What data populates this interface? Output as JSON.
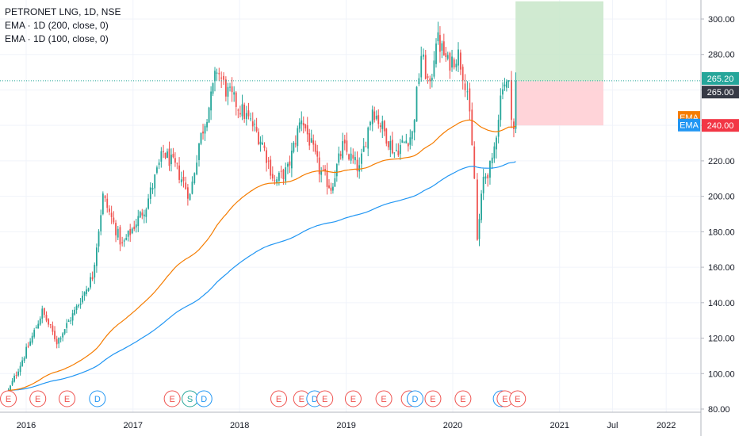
{
  "chart_data": {
    "type": "candlestick",
    "title": "PETRONET LNG, 1D, NSE",
    "indicators": [
      {
        "label": "EMA · 1D (200, close, 0)",
        "name": "EMA",
        "color": "#2196f3",
        "length": 200
      },
      {
        "label": "EMA · 1D (100, close, 0)",
        "name": "EMA",
        "color": "#f57c00",
        "length": 100
      }
    ],
    "ylim": [
      80,
      310
    ],
    "y_ticks": [
      "300.00",
      "280.00",
      "260.00",
      "240.00",
      "220.00",
      "200.00",
      "180.00",
      "160.00",
      "140.00",
      "120.00",
      "100.00",
      "80.00"
    ],
    "x_ticks": [
      "2016",
      "2017",
      "2018",
      "2019",
      "2020",
      "2021",
      "Jul",
      "2022"
    ],
    "last_price": {
      "label": "265.20",
      "value": 265.2,
      "color": "#26a69a"
    },
    "target_price": {
      "label": "265.00",
      "value": 265.0,
      "color": "#363a45"
    },
    "stop_price": {
      "label": "240.00",
      "value": 240.0,
      "color": "#f23645"
    },
    "ema_badges": [
      {
        "label": "EMA",
        "value": 244.5,
        "color": "#f57c00"
      },
      {
        "label": "EMA",
        "value": 240.2,
        "color": "#2196f3"
      }
    ],
    "position": {
      "entry": 265.0,
      "target": 310.0,
      "stop": 240.0,
      "start": "2020-08-03",
      "end": "2021-05-31",
      "profit_color": "#c8e6c9",
      "loss_color": "#ffcdd2"
    },
    "price_path": [
      [
        "2015-11-01",
        90
      ],
      [
        "2016-01-15",
        118
      ],
      [
        "2016-02-25",
        135
      ],
      [
        "2016-04-15",
        118
      ],
      [
        "2016-06-15",
        135
      ],
      [
        "2016-08-15",
        155
      ],
      [
        "2016-09-20",
        200
      ],
      [
        "2016-11-25",
        172
      ],
      [
        "2017-02-15",
        195
      ],
      [
        "2017-04-15",
        225
      ],
      [
        "2017-06-01",
        215
      ],
      [
        "2017-07-15",
        200
      ],
      [
        "2017-08-15",
        230
      ],
      [
        "2017-09-25",
        255
      ],
      [
        "2017-10-15",
        272
      ],
      [
        "2017-11-15",
        260
      ],
      [
        "2018-01-10",
        248
      ],
      [
        "2018-02-15",
        240
      ],
      [
        "2018-03-20",
        230
      ],
      [
        "2018-05-01",
        208
      ],
      [
        "2018-06-15",
        215
      ],
      [
        "2018-08-01",
        245
      ],
      [
        "2018-10-01",
        215
      ],
      [
        "2018-11-10",
        205
      ],
      [
        "2018-12-20",
        228
      ],
      [
        "2019-02-15",
        215
      ],
      [
        "2019-04-01",
        250
      ],
      [
        "2019-06-15",
        225
      ],
      [
        "2019-08-15",
        235
      ],
      [
        "2019-09-15",
        280
      ],
      [
        "2019-10-15",
        260
      ],
      [
        "2019-11-05",
        290
      ],
      [
        "2019-12-15",
        275
      ],
      [
        "2020-01-20",
        280
      ],
      [
        "2020-02-20",
        260
      ],
      [
        "2020-03-15",
        210
      ],
      [
        "2020-03-25",
        175
      ],
      [
        "2020-04-15",
        210
      ],
      [
        "2020-05-15",
        218
      ],
      [
        "2020-06-20",
        265
      ],
      [
        "2020-07-10",
        262
      ],
      [
        "2020-07-20",
        248
      ],
      [
        "2020-07-28",
        238
      ],
      [
        "2020-08-04",
        265
      ]
    ],
    "earnings_markers": [
      {
        "label": "E",
        "date": "2015-11-01",
        "type": "earnings"
      },
      {
        "label": "E",
        "date": "2016-02-10",
        "type": "earnings"
      },
      {
        "label": "E",
        "date": "2016-05-20",
        "type": "earnings"
      },
      {
        "label": "D",
        "date": "2016-09-01",
        "type": "dividend"
      },
      {
        "label": "E",
        "date": "2017-05-15",
        "type": "earnings"
      },
      {
        "label": "S",
        "date": "2017-07-15",
        "type": "split"
      },
      {
        "label": "D",
        "date": "2017-09-01",
        "type": "dividend"
      },
      {
        "label": "E",
        "date": "2018-05-15",
        "type": "earnings"
      },
      {
        "label": "E",
        "date": "2018-08-01",
        "type": "earnings"
      },
      {
        "label": "D",
        "date": "2018-09-15",
        "type": "dividend"
      },
      {
        "label": "E",
        "date": "2018-10-20",
        "type": "earnings"
      },
      {
        "label": "E",
        "date": "2019-01-25",
        "type": "earnings"
      },
      {
        "label": "E",
        "date": "2019-05-10",
        "type": "earnings"
      },
      {
        "label": "E",
        "date": "2019-08-05",
        "type": "earnings"
      },
      {
        "label": "D",
        "date": "2019-08-25",
        "type": "dividend"
      },
      {
        "label": "E",
        "date": "2019-10-25",
        "type": "earnings"
      },
      {
        "label": "E",
        "date": "2020-02-05",
        "type": "earnings"
      },
      {
        "label": "D",
        "date": "2020-06-15",
        "type": "dividend"
      },
      {
        "label": "E",
        "date": "2020-06-28",
        "type": "earnings"
      },
      {
        "label": "E",
        "date": "2020-08-10",
        "type": "earnings"
      }
    ],
    "colors": {
      "up": "#26a69a",
      "down": "#ef5350",
      "grid": "#f0f3fa",
      "axis_text": "#131722",
      "earnings": "#ef5350",
      "dividend": "#2196f3",
      "split": "#26a69a"
    }
  }
}
